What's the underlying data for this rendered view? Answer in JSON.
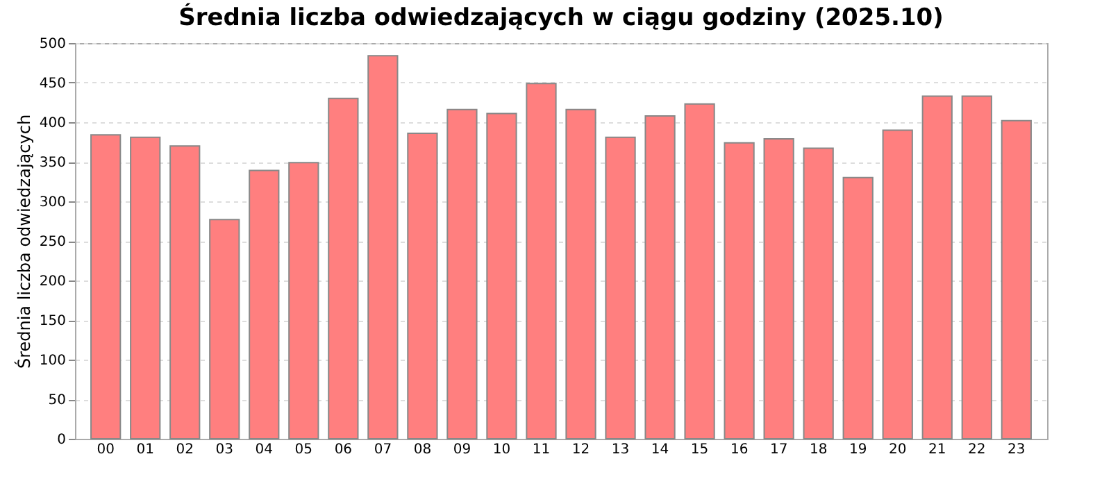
{
  "chart_data": {
    "type": "bar",
    "title": "Średnia liczba odwiedzających w ciągu godziny (2025.10)",
    "ylabel": "Średnia liczba odwiedzających",
    "categories": [
      "00",
      "01",
      "02",
      "03",
      "04",
      "05",
      "06",
      "07",
      "08",
      "09",
      "10",
      "11",
      "12",
      "13",
      "14",
      "15",
      "16",
      "17",
      "18",
      "19",
      "20",
      "21",
      "22",
      "23"
    ],
    "values": [
      384,
      381,
      370,
      277,
      339,
      349,
      430,
      484,
      386,
      416,
      411,
      449,
      416,
      381,
      408,
      423,
      374,
      379,
      367,
      330,
      390,
      433,
      433,
      402
    ],
    "color": "#ff7f7f",
    "ylim": [
      0,
      500
    ],
    "yticks": [
      0,
      50,
      100,
      150,
      200,
      250,
      300,
      350,
      400,
      450,
      500
    ],
    "grid": "y"
  }
}
